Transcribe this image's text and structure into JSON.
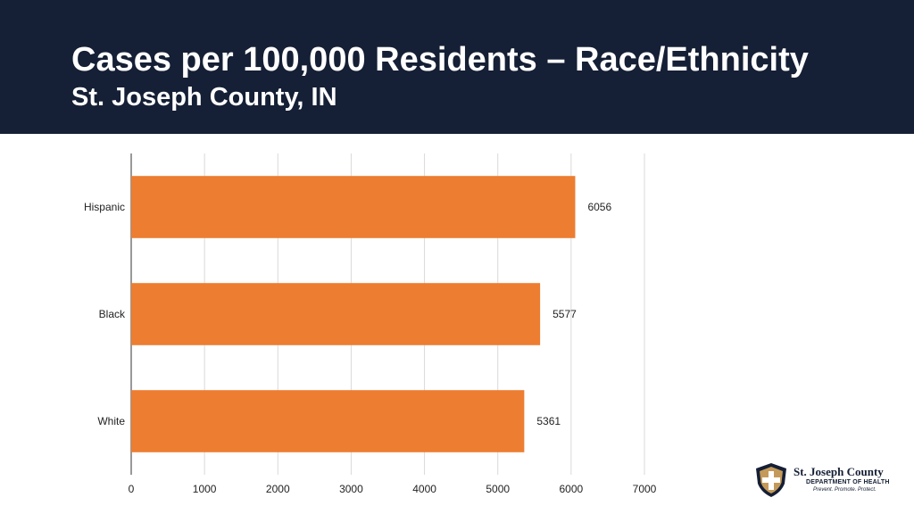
{
  "header": {
    "title": "Cases per 100,000 Residents – Race/Ethnicity",
    "subtitle": "St. Joseph County, IN"
  },
  "colors": {
    "header_bg": "#151f35",
    "bar": "#ed7d31",
    "gridline": "#d9d9d9",
    "axis": "#333333"
  },
  "chart_data": {
    "type": "bar",
    "orientation": "horizontal",
    "title": "",
    "xlabel": "",
    "ylabel": "",
    "categories": [
      "Hispanic",
      "Black",
      "White"
    ],
    "values": [
      6056,
      5577,
      5361
    ],
    "data_labels": [
      "6056",
      "5577",
      "5361"
    ],
    "xlim": [
      0,
      7000
    ],
    "xticks": [
      0,
      1000,
      2000,
      3000,
      4000,
      5000,
      6000,
      7000
    ],
    "grid": true,
    "legend": "none"
  },
  "logo": {
    "line1": "St. Joseph County",
    "line2": "DEPARTMENT OF HEALTH",
    "line3": "Prevent. Promote. Protect.",
    "icon": "shield-cross-icon"
  }
}
